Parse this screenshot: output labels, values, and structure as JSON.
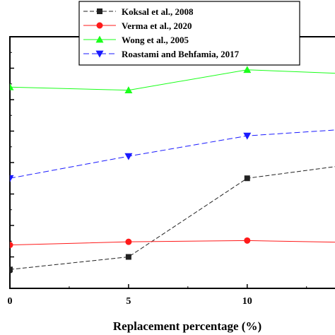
{
  "chart_data": {
    "type": "line",
    "title": "",
    "xlabel": "Replacement percentage (%)",
    "ylabel": "",
    "x": [
      0,
      5,
      10,
      15
    ],
    "xticks": [
      0,
      5,
      10
    ],
    "xlim": [
      0,
      13.7
    ],
    "ylim": [
      0,
      8
    ],
    "yticks": [
      0,
      1,
      2,
      3,
      4,
      5,
      6,
      7,
      8
    ],
    "show_ytick_labels": false,
    "grid": false,
    "legend_position": "top-center",
    "series": [
      {
        "name": "Koksal et al., 2008",
        "color": "#222222",
        "marker": "square",
        "dash": "6 3",
        "values": [
          0.6,
          1.0,
          3.5,
          4.0
        ]
      },
      {
        "name": "Verma et al., 2020",
        "color": "#ff1a1a",
        "marker": "circle",
        "dash": "",
        "values": [
          1.38,
          1.48,
          1.52,
          1.45
        ]
      },
      {
        "name": "Wong et al., 2005",
        "color": "#1aff1a",
        "marker": "triangle-up",
        "dash": "",
        "values": [
          6.4,
          6.3,
          6.95,
          6.8
        ]
      },
      {
        "name": "Roastami and Behfamia,  2017",
        "color": "#1a1aff",
        "marker": "triangle-down",
        "dash": "8 4",
        "values": [
          3.5,
          4.2,
          4.85,
          5.1
        ]
      }
    ]
  }
}
